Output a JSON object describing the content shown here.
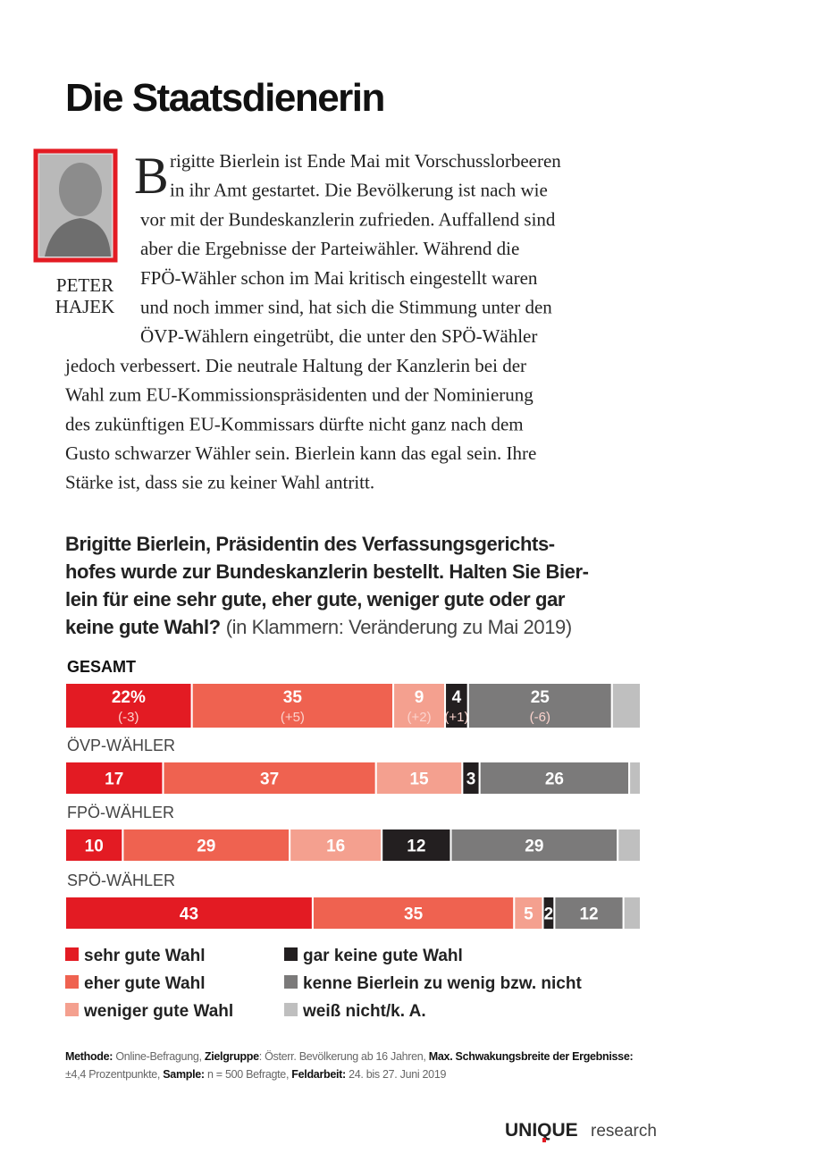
{
  "header": {
    "title": "Die Staatsdienerin"
  },
  "author": {
    "first": "PETER",
    "last": "HAJEK"
  },
  "article": {
    "drop_cap": "B",
    "lines": [
      "rigitte Bierlein ist Ende Mai mit Vorschusslorbeeren",
      "in ihr Amt gestartet. Die Bevölkerung ist nach wie",
      "vor mit der Bundeskanzlerin zufrieden. Auffallend sind",
      "aber die Ergebnisse der Parteiwähler. Während die",
      "FPÖ-Wähler schon im Mai kritisch eingestellt waren",
      "und noch immer sind, hat sich die Stimmung unter den",
      "ÖVP-Wählern eingetrübt, die unter den SPÖ-Wähler",
      "jedoch verbessert. Die neutrale Haltung der Kanzlerin bei der",
      "Wahl zum EU-Kommissionspräsidenten und der Nominierung",
      "des zukünftigen EU-Kommissars dürfte nicht ganz nach dem",
      "Gusto schwarzer Wähler sein. Bierlein kann das egal sein. Ihre",
      "Stärke ist, dass sie zu keiner Wahl antritt."
    ]
  },
  "question": {
    "lines": [
      "Brigitte Bierlein, Präsidentin des Verfassungsgerichts-",
      "hofes wurde zur Bundeskanzlerin bestellt. Halten Sie Bier-",
      "lein für eine sehr gute, eher gute, weniger gute oder gar",
      "keine gute Wahl?"
    ],
    "note": "(in Klammern: Veränderung zu Mai 2019)"
  },
  "chart_data": {
    "type": "bar",
    "orientation": "horizontal",
    "stacked": true,
    "categories": [
      "GESAMT",
      "ÖVP-WÄHLER",
      "FPÖ-WÄHLER",
      "SPÖ-WÄHLER"
    ],
    "xlim": [
      0,
      100
    ],
    "series": [
      {
        "name": "sehr gute Wahl",
        "color": "#e31b23",
        "values": [
          22,
          17,
          10,
          43
        ],
        "value_labels": [
          "22%",
          "17",
          "10",
          "43"
        ],
        "changes": [
          "(-3)",
          null,
          null,
          null
        ]
      },
      {
        "name": "eher gute Wahl",
        "color": "#ef6250",
        "values": [
          35,
          37,
          29,
          35
        ],
        "changes": [
          "(+5)",
          null,
          null,
          null
        ]
      },
      {
        "name": "weniger gute Wahl",
        "color": "#f4a08f",
        "values": [
          9,
          15,
          16,
          5
        ],
        "changes": [
          "(+2)",
          null,
          null,
          null
        ]
      },
      {
        "name": "gar keine gute Wahl",
        "color": "#231f20",
        "values": [
          4,
          3,
          12,
          2
        ],
        "changes": [
          "(+1)",
          null,
          null,
          null
        ]
      },
      {
        "name": "kenne Bierlein zu wenig bzw. nicht",
        "color": "#7b7a7a",
        "values": [
          25,
          26,
          29,
          12
        ],
        "changes": [
          "(-6)",
          null,
          null,
          null
        ]
      },
      {
        "name": "weiß nicht/k. A.",
        "color": "#bfbfbf",
        "values": [
          5,
          2,
          4,
          3
        ],
        "value_labels": [
          null,
          null,
          null,
          null
        ],
        "changes": [
          null,
          null,
          null,
          null
        ]
      }
    ]
  },
  "footnote": {
    "lines": [
      [
        {
          "text": "Methode:",
          "bold": true
        },
        {
          "text": " Online-Befragung, ",
          "bold": false
        },
        {
          "text": "Zielgruppe",
          "bold": true
        },
        {
          "text": ": Österr. Bevölkerung ab 16 Jahren, ",
          "bold": false
        },
        {
          "text": "Max. Schwakungsbreite der Ergebnisse:",
          "bold": true
        }
      ],
      [
        {
          "text": "±4,4 Prozentpunkte, ",
          "bold": false
        },
        {
          "text": "Sample:",
          "bold": true
        },
        {
          "text": " n = 500 Befragte, ",
          "bold": false
        },
        {
          "text": "Feldarbeit:",
          "bold": true
        },
        {
          "text": " 24. bis 27. Juni 2019",
          "bold": false
        }
      ]
    ]
  },
  "logo": {
    "brand": "UNIQUE",
    "suffix": "research"
  }
}
